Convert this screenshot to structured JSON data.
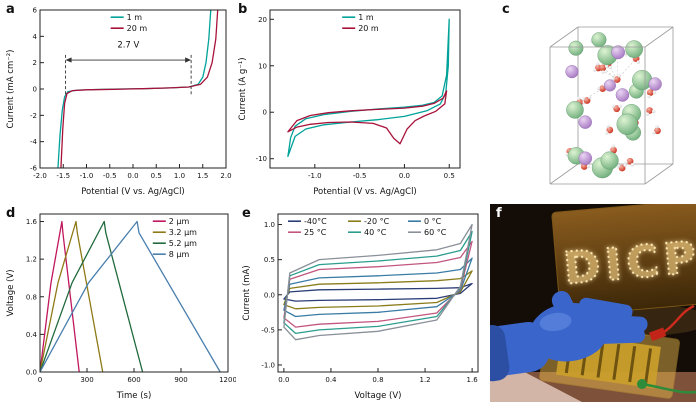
{
  "panel_labels": {
    "a": "a",
    "b": "b",
    "c": "c",
    "d": "d",
    "e": "e",
    "f": "f"
  },
  "chart_data": [
    {
      "id": "a",
      "type": "line",
      "xlabel": "Potential (V vs. Ag/AgCl)",
      "ylabel": "Current (mA cm⁻²)",
      "xlim": [
        -2,
        2
      ],
      "ylim": [
        -6,
        6
      ],
      "xticks": [
        -2,
        -1.5,
        -1,
        -0.5,
        0,
        0.5,
        1,
        1.5,
        2
      ],
      "xtick_labels": [
        "-2.0",
        "-1.5",
        "-1.0",
        "-0.5",
        "0.0",
        "0.5",
        "1.0",
        "1.5",
        "2.0"
      ],
      "yticks": [
        -6,
        -4,
        -2,
        0,
        2,
        4,
        6
      ],
      "ytick_labels": [
        "-6",
        "-4",
        "-2",
        "0",
        "2",
        "4",
        "6"
      ],
      "legend": [
        {
          "label": "1 m",
          "color": "#00a29a"
        },
        {
          "label": "20 m",
          "color": "#a8123a"
        }
      ],
      "series": [
        {
          "name": "1 m",
          "color": "#00a29a",
          "points": [
            [
              -1.64,
              -7.5
            ],
            [
              -1.57,
              -3.5
            ],
            [
              -1.52,
              -1.6
            ],
            [
              -1.47,
              -0.6
            ],
            [
              -1.4,
              -0.2
            ],
            [
              -1.2,
              -0.08
            ],
            [
              -0.8,
              -0.04
            ],
            [
              -0.3,
              0
            ],
            [
              0.3,
              0.03
            ],
            [
              0.8,
              0.08
            ],
            [
              1.2,
              0.15
            ],
            [
              1.4,
              0.35
            ],
            [
              1.5,
              0.9
            ],
            [
              1.57,
              2
            ],
            [
              1.63,
              3.8
            ],
            [
              1.7,
              7.5
            ]
          ]
        },
        {
          "name": "20 m",
          "color": "#a8123a",
          "points": [
            [
              -1.57,
              -7.5
            ],
            [
              -1.51,
              -3
            ],
            [
              -1.47,
              -1.1
            ],
            [
              -1.42,
              -0.35
            ],
            [
              -1.3,
              -0.12
            ],
            [
              -1,
              -0.06
            ],
            [
              -0.4,
              -0.02
            ],
            [
              0.2,
              0.02
            ],
            [
              0.8,
              0.08
            ],
            [
              1.2,
              0.15
            ],
            [
              1.45,
              0.35
            ],
            [
              1.6,
              0.9
            ],
            [
              1.7,
              2
            ],
            [
              1.78,
              3.8
            ],
            [
              1.85,
              7.5
            ]
          ]
        }
      ],
      "annotation": {
        "label": "2.7 V",
        "x1": -1.45,
        "x2": 1.25,
        "arrow_y": 2.2,
        "line_top": 2.6,
        "line_bottom": -0.4,
        "label_x": -0.1,
        "label_y": 3.0
      }
    },
    {
      "id": "b",
      "type": "line",
      "xlabel": "Potential (V vs. Ag/AgCl)",
      "ylabel": "Current (A g⁻¹)",
      "xlim": [
        -1.5,
        0.62
      ],
      "ylim": [
        -12,
        22
      ],
      "xticks": [
        -1,
        -0.5,
        0,
        0.5
      ],
      "xtick_labels": [
        "-1.0",
        "-0.5",
        "0.0",
        "0.5"
      ],
      "yticks": [
        -10,
        0,
        10,
        20
      ],
      "ytick_labels": [
        "-10",
        "0",
        "10",
        "20"
      ],
      "legend": [
        {
          "label": "1 m",
          "color": "#00a29a"
        },
        {
          "label": "20 m",
          "color": "#a8123a"
        }
      ],
      "series": [
        {
          "name": "1 m",
          "color": "#00a29a",
          "points": [
            [
              -1.3,
              -9.5
            ],
            [
              -1.27,
              -5.5
            ],
            [
              -1.22,
              -3
            ],
            [
              -1.1,
              -1.4
            ],
            [
              -0.9,
              -0.5
            ],
            [
              -0.6,
              0.2
            ],
            [
              -0.3,
              0.7
            ],
            [
              0,
              1.1
            ],
            [
              0.2,
              1.5
            ],
            [
              0.33,
              2.1
            ],
            [
              0.42,
              3.5
            ],
            [
              0.47,
              8
            ],
            [
              0.5,
              20
            ],
            [
              0.49,
              10
            ],
            [
              0.46,
              4
            ],
            [
              0.4,
              1.8
            ],
            [
              0.25,
              0.3
            ],
            [
              0,
              -0.9
            ],
            [
              -0.3,
              -1.6
            ],
            [
              -0.6,
              -2.1
            ],
            [
              -0.9,
              -2.7
            ],
            [
              -1.1,
              -3.6
            ],
            [
              -1.22,
              -5.2
            ],
            [
              -1.3,
              -9.5
            ]
          ]
        },
        {
          "name": "20 m",
          "color": "#a8123a",
          "points": [
            [
              -1.3,
              -4.2
            ],
            [
              -1.2,
              -1.8
            ],
            [
              -1.05,
              -0.7
            ],
            [
              -0.85,
              -0.1
            ],
            [
              -0.6,
              0.3
            ],
            [
              -0.3,
              0.6
            ],
            [
              0,
              0.9
            ],
            [
              0.2,
              1.3
            ],
            [
              0.33,
              1.9
            ],
            [
              0.43,
              3
            ],
            [
              0.47,
              4.6
            ],
            [
              0.45,
              1.8
            ],
            [
              0.35,
              0.2
            ],
            [
              0.22,
              -0.8
            ],
            [
              0.12,
              -1.8
            ],
            [
              0.03,
              -3.6
            ],
            [
              -0.05,
              -6.8
            ],
            [
              -0.12,
              -5.6
            ],
            [
              -0.2,
              -3.4
            ],
            [
              -0.35,
              -2.4
            ],
            [
              -0.6,
              -2.1
            ],
            [
              -0.85,
              -2.2
            ],
            [
              -1.05,
              -2.6
            ],
            [
              -1.2,
              -3.2
            ],
            [
              -1.3,
              -4.2
            ]
          ]
        }
      ]
    },
    {
      "id": "d",
      "type": "line",
      "xlabel": "Time (s)",
      "ylabel": "Voltage (V)",
      "xlim": [
        0,
        1200
      ],
      "ylim": [
        0,
        1.68
      ],
      "xticks": [
        0,
        300,
        600,
        900,
        1200
      ],
      "xtick_labels": [
        "0",
        "300",
        "600",
        "900",
        "1200"
      ],
      "yticks": [
        0,
        0.4,
        0.8,
        1.2,
        1.6
      ],
      "ytick_labels": [
        "0.0",
        "0.4",
        "0.8",
        "1.2",
        "1.6"
      ],
      "legend": [
        {
          "label": "2 µm",
          "color": "#c0175d"
        },
        {
          "label": "3.2 µm",
          "color": "#8f7a16"
        },
        {
          "label": "5.2 µm",
          "color": "#206a3d"
        },
        {
          "label": "8 µm",
          "color": "#4a7fae"
        }
      ],
      "series": [
        {
          "name": "2 µm",
          "color": "#c0175d",
          "points": [
            [
              0,
              0
            ],
            [
              70,
              0.95
            ],
            [
              140,
              1.6
            ],
            [
              146,
              1.48
            ],
            [
              250,
              0
            ]
          ]
        },
        {
          "name": "3.2 µm",
          "color": "#8f7a16",
          "points": [
            [
              0,
              0
            ],
            [
              115,
              0.95
            ],
            [
              230,
              1.6
            ],
            [
              238,
              1.48
            ],
            [
              400,
              0
            ]
          ]
        },
        {
          "name": "5.2 µm",
          "color": "#206a3d",
          "points": [
            [
              0,
              0
            ],
            [
              205,
              0.95
            ],
            [
              410,
              1.6
            ],
            [
              420,
              1.48
            ],
            [
              655,
              0
            ]
          ]
        },
        {
          "name": "8 µm",
          "color": "#4a7fae",
          "points": [
            [
              0,
              0
            ],
            [
              310,
              0.95
            ],
            [
              620,
              1.6
            ],
            [
              632,
              1.48
            ],
            [
              1150,
              0
            ]
          ]
        }
      ]
    },
    {
      "id": "e",
      "type": "line",
      "xlabel": "Voltage (V)",
      "ylabel": "Current (mA)",
      "xlim": [
        -0.05,
        1.65
      ],
      "ylim": [
        -1.1,
        1.15
      ],
      "xticks": [
        0,
        0.4,
        0.8,
        1.2,
        1.6
      ],
      "xtick_labels": [
        "0.0",
        "0.4",
        "0.8",
        "1.2",
        "1.6"
      ],
      "yticks": [
        -1,
        -0.5,
        0,
        0.5,
        1
      ],
      "ytick_labels": [
        "-1.0",
        "-0.5",
        "0.0",
        "0.5",
        "1.0"
      ],
      "legend": [
        {
          "label": "-40°C",
          "color": "#2c3e78"
        },
        {
          "label": "-20 °C",
          "color": "#8a7d1c"
        },
        {
          "label": "0 °C",
          "color": "#3a7ca5"
        },
        {
          "label": "25 °C",
          "color": "#c2567f"
        },
        {
          "label": "40 °C",
          "color": "#2a9d8f"
        },
        {
          "label": "60 °C",
          "color": "#8a8f98"
        }
      ],
      "series": [
        {
          "name": "-40°C",
          "color": "#2c3e78",
          "points": [
            [
              0,
              -0.06
            ],
            [
              0.05,
              0.04
            ],
            [
              0.3,
              0.07
            ],
            [
              0.8,
              0.08
            ],
            [
              1.3,
              0.09
            ],
            [
              1.5,
              0.1
            ],
            [
              1.6,
              0.16
            ],
            [
              1.5,
              0.02
            ],
            [
              1.3,
              -0.05
            ],
            [
              0.8,
              -0.07
            ],
            [
              0.3,
              -0.08
            ],
            [
              0.1,
              -0.09
            ],
            [
              0,
              -0.06
            ]
          ]
        },
        {
          "name": "-20 °C",
          "color": "#8a7d1c",
          "points": [
            [
              0,
              -0.14
            ],
            [
              0.05,
              0.09
            ],
            [
              0.3,
              0.15
            ],
            [
              0.8,
              0.17
            ],
            [
              1.3,
              0.2
            ],
            [
              1.5,
              0.23
            ],
            [
              1.6,
              0.34
            ],
            [
              1.5,
              0.04
            ],
            [
              1.3,
              -0.11
            ],
            [
              0.8,
              -0.16
            ],
            [
              0.3,
              -0.18
            ],
            [
              0.1,
              -0.2
            ],
            [
              0,
              -0.14
            ]
          ]
        },
        {
          "name": "0 °C",
          "color": "#3a7ca5",
          "points": [
            [
              0,
              -0.22
            ],
            [
              0.05,
              0.15
            ],
            [
              0.3,
              0.24
            ],
            [
              0.8,
              0.27
            ],
            [
              1.3,
              0.31
            ],
            [
              1.5,
              0.36
            ],
            [
              1.6,
              0.52
            ],
            [
              1.5,
              0.06
            ],
            [
              1.3,
              -0.17
            ],
            [
              0.8,
              -0.25
            ],
            [
              0.3,
              -0.28
            ],
            [
              0.1,
              -0.31
            ],
            [
              0,
              -0.22
            ]
          ]
        },
        {
          "name": "25 °C",
          "color": "#c2567f",
          "points": [
            [
              0,
              -0.33
            ],
            [
              0.05,
              0.22
            ],
            [
              0.3,
              0.36
            ],
            [
              0.8,
              0.4
            ],
            [
              1.3,
              0.46
            ],
            [
              1.5,
              0.53
            ],
            [
              1.6,
              0.76
            ],
            [
              1.5,
              0.08
            ],
            [
              1.3,
              -0.26
            ],
            [
              0.8,
              -0.38
            ],
            [
              0.3,
              -0.42
            ],
            [
              0.1,
              -0.46
            ],
            [
              0,
              -0.33
            ]
          ]
        },
        {
          "name": "40 °C",
          "color": "#2a9d8f",
          "points": [
            [
              0,
              -0.4
            ],
            [
              0.05,
              0.27
            ],
            [
              0.3,
              0.43
            ],
            [
              0.8,
              0.48
            ],
            [
              1.3,
              0.55
            ],
            [
              1.5,
              0.63
            ],
            [
              1.6,
              0.9
            ],
            [
              1.5,
              0.1
            ],
            [
              1.3,
              -0.31
            ],
            [
              0.8,
              -0.45
            ],
            [
              0.3,
              -0.5
            ],
            [
              0.1,
              -0.55
            ],
            [
              0,
              -0.4
            ]
          ]
        },
        {
          "name": "60 °C",
          "color": "#8a8f98",
          "points": [
            [
              0,
              -0.46
            ],
            [
              0.05,
              0.31
            ],
            [
              0.3,
              0.5
            ],
            [
              0.8,
              0.56
            ],
            [
              1.3,
              0.64
            ],
            [
              1.5,
              0.73
            ],
            [
              1.6,
              1.0
            ],
            [
              1.5,
              0.12
            ],
            [
              1.3,
              -0.36
            ],
            [
              0.8,
              -0.52
            ],
            [
              0.3,
              -0.58
            ],
            [
              0.1,
              -0.64
            ],
            [
              0,
              -0.46
            ]
          ]
        }
      ]
    }
  ],
  "molecular_panel": {
    "box_color": "#9a9a9a",
    "atoms": {
      "anion_color": "#6fae7c",
      "cation_color": "#a678c2",
      "oxygen_color": "#c9301e",
      "hydrogen_color": "#f2f2f2"
    },
    "counts": {
      "waters": 26,
      "anions": 13,
      "cations": 7,
      "hbonds": 12
    }
  },
  "photo_panel": {
    "led_text": "DICP",
    "led_color": "#ffd98a",
    "board_color": "#6d4a12",
    "glove_color": "#3a66cc",
    "film_color": "#caa02b",
    "wire_colors": {
      "positive": "#cc2b1d",
      "negative": "#2e8b3a"
    },
    "background": "#140d07"
  }
}
